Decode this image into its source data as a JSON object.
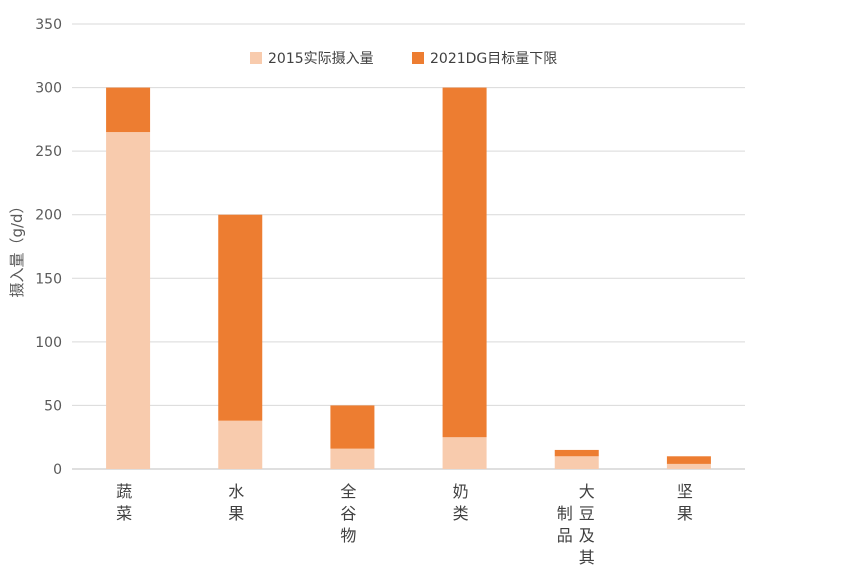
{
  "chart_data": {
    "type": "bar",
    "stacked": true,
    "categories": [
      "蔬菜",
      "水果",
      "全谷物",
      "奶类",
      "大豆及其制品",
      "坚果"
    ],
    "category_label_lines": [
      [
        "蔬",
        "菜"
      ],
      [
        "水",
        "果"
      ],
      [
        "全",
        "谷",
        "物"
      ],
      [
        "奶",
        "类"
      ],
      [
        "大",
        "豆",
        "及",
        "其",
        "制",
        "品"
      ],
      [
        "坚",
        "果"
      ]
    ],
    "series": [
      {
        "name": "2015实际摄入量",
        "values": [
          265,
          38,
          16,
          25,
          10,
          4
        ],
        "color": "#F8CBAD"
      },
      {
        "name": "2021DG目标量下限",
        "values": [
          35,
          162,
          34,
          275,
          5,
          6
        ],
        "color": "#ED7D31"
      }
    ],
    "ylabel": "摄入量（g/d）",
    "ylim": [
      0,
      350
    ],
    "yticks": [
      0,
      50,
      100,
      150,
      200,
      250,
      300,
      350
    ],
    "grid": true,
    "legend_position": "top"
  }
}
